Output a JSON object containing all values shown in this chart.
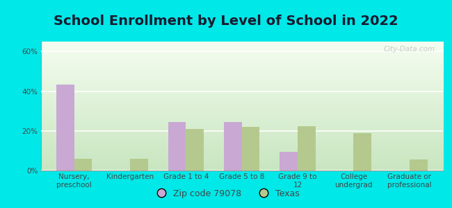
{
  "title": "School Enrollment by Level of School in 2022",
  "categories": [
    "Nursery,\npreschool",
    "Kindergarten",
    "Grade 1 to 4",
    "Grade 5 to 8",
    "Grade 9 to\n12",
    "College\nundergrad",
    "Graduate or\nprofessional"
  ],
  "zip_values": [
    43.5,
    0.0,
    24.5,
    24.5,
    9.5,
    0.0,
    0.0
  ],
  "texas_values": [
    6.0,
    6.0,
    21.0,
    22.0,
    22.5,
    19.0,
    5.5
  ],
  "zip_color": "#c9a8d4",
  "texas_color": "#b5c98e",
  "background_outer": "#00e8e8",
  "background_inner_bottom": "#c8e6c0",
  "background_inner_top": "#f5fdf0",
  "ylabel_ticks": [
    "0%",
    "20%",
    "40%",
    "60%"
  ],
  "ytick_values": [
    0,
    20,
    40,
    60
  ],
  "ylim": [
    0,
    65
  ],
  "legend_zip_label": "Zip code 79078",
  "legend_texas_label": "Texas",
  "bar_width": 0.32,
  "title_fontsize": 14,
  "tick_fontsize": 7.5,
  "legend_fontsize": 9,
  "watermark": "City-Data.com",
  "title_color": "#1a1a2e",
  "tick_color": "#444444"
}
